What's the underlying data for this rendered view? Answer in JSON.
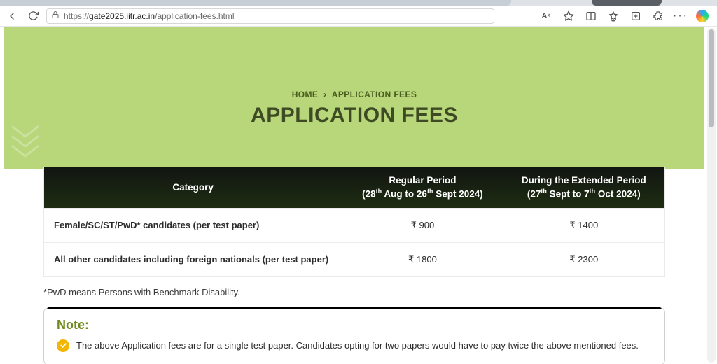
{
  "browser": {
    "url": {
      "prefix": "https://",
      "host": "gate2025.iitr.ac.in",
      "path": "/application-fees.html"
    }
  },
  "breadcrumb": {
    "home": "HOME",
    "current": "APPLICATION FEES"
  },
  "title": "APPLICATION FEES",
  "table": {
    "headers": {
      "category": "Category",
      "regular_line1": "Regular Period",
      "regular_line2": "(28th Aug to 26th Sept 2024)",
      "extended_line1": "During the Extended Period",
      "extended_line2": "(27th Sept to 7th Oct 2024)"
    },
    "rows": [
      {
        "category": "Female/SC/ST/PwD* candidates (per test paper)",
        "regular": "₹ 900",
        "extended": "₹ 1400"
      },
      {
        "category": "All other candidates including foreign nationals (per test paper)",
        "regular": "₹ 1800",
        "extended": "₹ 2300"
      }
    ]
  },
  "footnote": "*PwD means Persons with Benchmark Disability.",
  "note": {
    "title": "Note:",
    "text": "The above Application fees are for a single test paper. Candidates opting for two papers would have to pay twice the above mentioned fees."
  },
  "colors": {
    "hero_bg": "#b8d77a",
    "title_color": "#3d4a24",
    "breadcrumb_color": "#4a5c1f",
    "table_head_top": "#121512",
    "table_head_bottom": "#1e2d12",
    "note_title_color": "#6f8a1d",
    "check_bg": "#f2b705"
  }
}
